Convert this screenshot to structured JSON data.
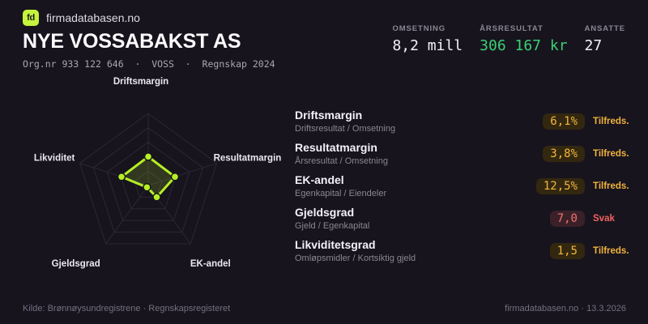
{
  "brand": {
    "logo_text": "fd",
    "site": "firmadatabasen.no",
    "logo_color": "#c6f33c"
  },
  "header": {
    "title": "NYE VOSSABAKST AS",
    "subtitle": "Org.nr 933 122 646  ·  VOSS  ·  Regnskap 2024"
  },
  "stats": [
    {
      "label": "OMSETNING",
      "value": "8,2 mill",
      "color": "#f4f2f7"
    },
    {
      "label": "ÅRSRESULTAT",
      "value": "306 167 kr",
      "color": "#3bcf74"
    },
    {
      "label": "ANSATTE",
      "value": "27",
      "color": "#f4f2f7"
    }
  ],
  "chart_data": {
    "type": "radar",
    "categories": [
      "Driftsmargin",
      "Resultatmargin",
      "EK-andel",
      "Gjeldsgrad",
      "Likviditet"
    ],
    "values_normalized": [
      0.4,
      0.39,
      0.2,
      0.03,
      0.39
    ],
    "rings": 5,
    "grid_on": true,
    "legend": "none",
    "grid_color": "#2b2835",
    "stroke_color": "#b6ef25",
    "fill_color": "rgba(184,240,44,0.17)",
    "point_color": "#b6ef25",
    "label_color": "#eae8f0"
  },
  "metrics": [
    {
      "title": "Driftsmargin",
      "formula": "Driftsresultat / Omsetning",
      "value": "6,1%",
      "status": "Tilfreds.",
      "level": "good"
    },
    {
      "title": "Resultatmargin",
      "formula": "Årsresultat / Omsetning",
      "value": "3,8%",
      "status": "Tilfreds.",
      "level": "good"
    },
    {
      "title": "EK-andel",
      "formula": "Egenkapital / Eiendeler",
      "value": "12,5%",
      "status": "Tilfreds.",
      "level": "good"
    },
    {
      "title": "Gjeldsgrad",
      "formula": "Gjeld / Egenkapital",
      "value": "7,0",
      "status": "Svak",
      "level": "bad"
    },
    {
      "title": "Likviditetsgrad",
      "formula": "Omløpsmidler / Kortsiktig gjeld",
      "value": "1,5",
      "status": "Tilfreds.",
      "level": "good"
    }
  ],
  "status_colors": {
    "good": "#f0b23c",
    "bad": "#f2625f"
  },
  "footer": {
    "left": "Kilde: Brønnøysundregistrene · Regnskapsregisteret",
    "right": "firmadatabasen.no · 13.3.2026"
  }
}
